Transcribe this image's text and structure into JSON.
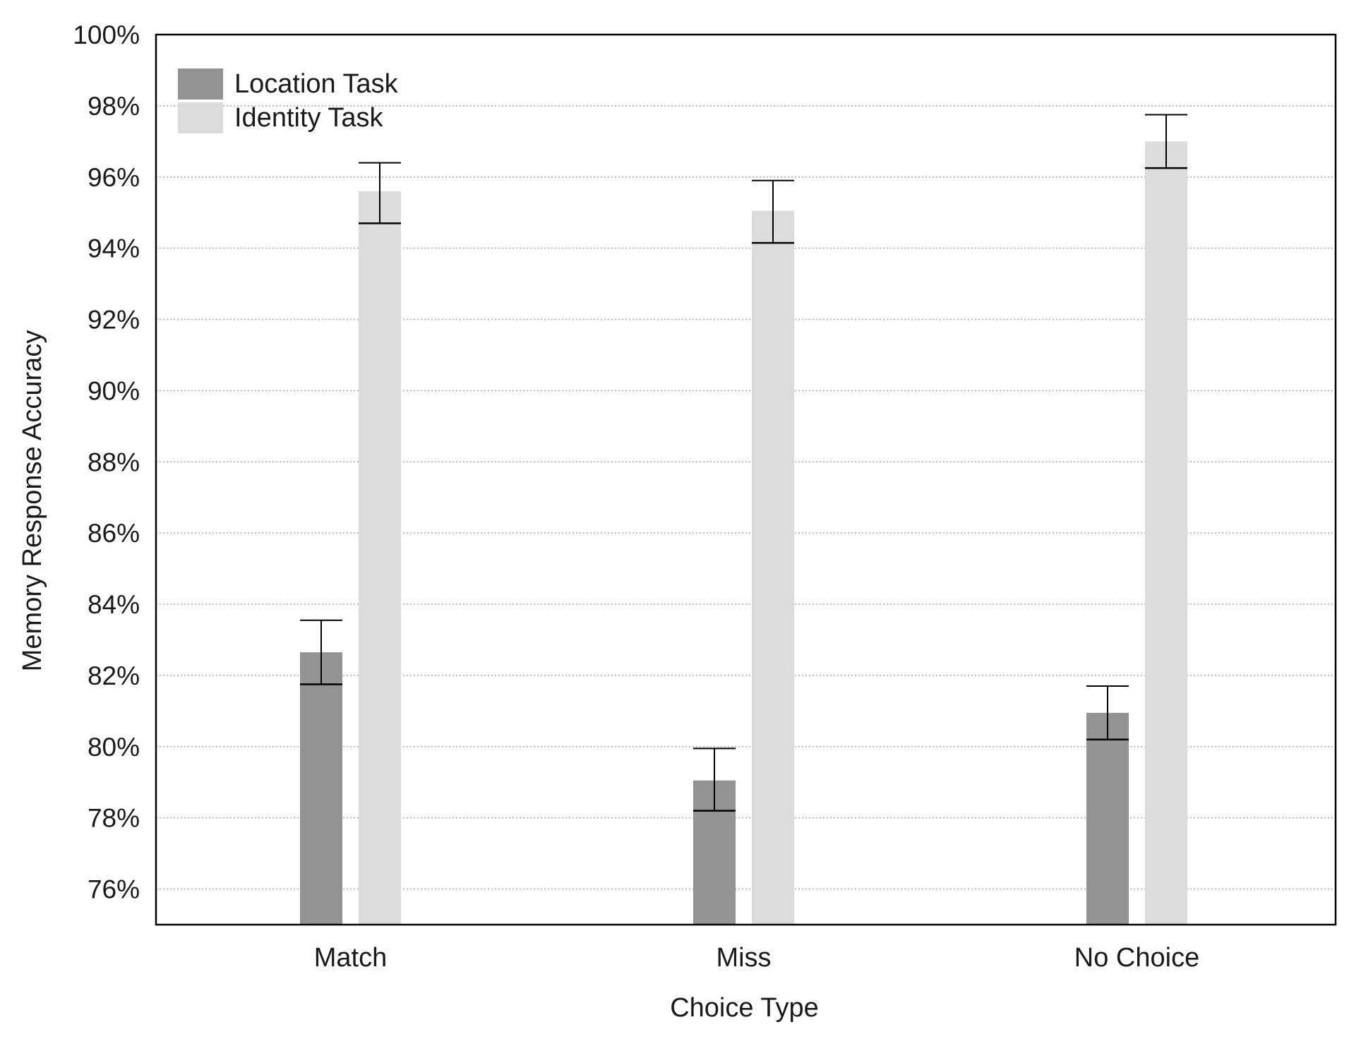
{
  "chart_data": {
    "type": "bar",
    "title": "",
    "xlabel": "Choice Type",
    "ylabel": "Memory Response Accuracy",
    "categories": [
      "Match",
      "Miss",
      "No Choice"
    ],
    "series": [
      {
        "name": "Location Task",
        "color": "#939393",
        "values": [
          82.65,
          79.05,
          80.95
        ],
        "error_low": [
          81.75,
          78.2,
          80.2
        ],
        "error_high": [
          83.55,
          79.95,
          81.7
        ]
      },
      {
        "name": "Identity Task",
        "color": "#dcdcdc",
        "values": [
          95.6,
          95.05,
          97.0
        ],
        "error_low": [
          94.7,
          94.15,
          96.25
        ],
        "error_high": [
          96.4,
          95.9,
          97.75
        ]
      }
    ],
    "ylim": [
      75,
      100
    ],
    "yticks": [
      76,
      78,
      80,
      82,
      84,
      86,
      88,
      90,
      92,
      94,
      96,
      98,
      100
    ],
    "ytick_labels": [
      "76%",
      "78%",
      "80%",
      "82%",
      "84%",
      "86%",
      "88%",
      "90%",
      "92%",
      "94%",
      "96%",
      "98%",
      "100%"
    ],
    "grid": true,
    "grid_style": "dotted horizontal",
    "legend_position": "top-left",
    "frame_color": "#000000",
    "errorbar_color": "#000000"
  }
}
